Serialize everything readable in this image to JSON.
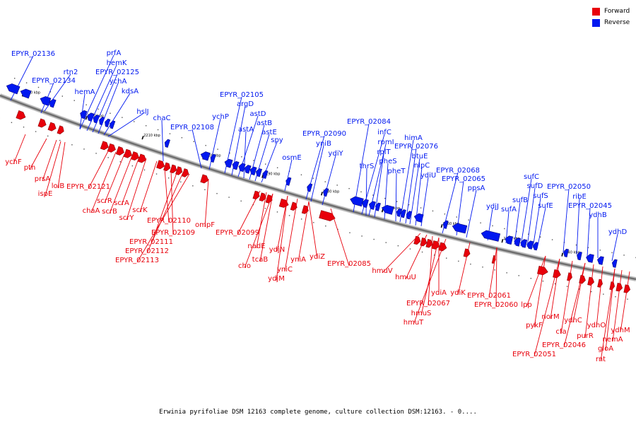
{
  "legend": {
    "forward": {
      "label": "Forward",
      "color": "#e8000b"
    },
    "reverse": {
      "label": "Reverse",
      "color": "#0018f0"
    }
  },
  "caption": "Erwinia pyrifoliae DSM 12163 complete genome, culture collection DSM:12163. - 0....",
  "axis": {
    "tick_labels": [
      "2230 kbp",
      "2220 kbp",
      "2210 kbp",
      "2200 kbp",
      "2190 kbp",
      "2180 kbp",
      "2170 kbp",
      "2160 kbp",
      "2150 kbp",
      "2140 kbp"
    ]
  },
  "reverse_genes": [
    "EPYR_02136",
    "rtn2",
    "EPYR_02134",
    "prfA",
    "hemK",
    "EPYR_02125",
    "hemA",
    "ychA",
    "kdsA",
    "hslJ",
    "chaC",
    "EPYR_02108",
    "ychP",
    "EPYR_02105",
    "argD",
    "astD",
    "astA",
    "astB",
    "astE",
    "spy",
    "osmE",
    "EPYR_02090",
    "yniB",
    "ydiY",
    "EPYR_02084",
    "infC",
    "rpmI",
    "rplT",
    "pheS",
    "thrS",
    "pheT",
    "himA",
    "EPYR_02076",
    "btuE",
    "nlpC",
    "ydiU",
    "EPYR_02068",
    "EPYR_02065",
    "ppsA",
    "ydjJ",
    "sufA",
    "sufB",
    "sufC",
    "sufD",
    "sufS",
    "sufE",
    "EPYR_02050",
    "ribE",
    "EPYR_02045",
    "ydhB",
    "ydhD"
  ],
  "forward_genes": [
    "ychF",
    "pth",
    "prsA",
    "lolB",
    "ispE",
    "EPYR_02121",
    "chaA",
    "scrR",
    "scrB",
    "scrA",
    "scrY",
    "scrK",
    "EPYR_02110",
    "EPYR_02109",
    "EPYR_02111",
    "EPYR_02112",
    "EPYR_02113",
    "ompF",
    "EPYR_02099",
    "nadE",
    "cho",
    "tcaB",
    "ydjN",
    "ydjM",
    "yniC",
    "yniA",
    "ydiZ",
    "EPYR_02085",
    "hmuV",
    "hmuU",
    "EPYR_02067",
    "hmuS",
    "hmuT",
    "ydiA",
    "ydiK",
    "EPYR_02061",
    "EPYR_02060",
    "lpp",
    "pykF",
    "norM",
    "cfa",
    "ydhC",
    "EPYR_02046",
    "EPYR_02051",
    "purR",
    "ydhO",
    "gloA",
    "nemA",
    "rnt",
    "ydhM"
  ]
}
